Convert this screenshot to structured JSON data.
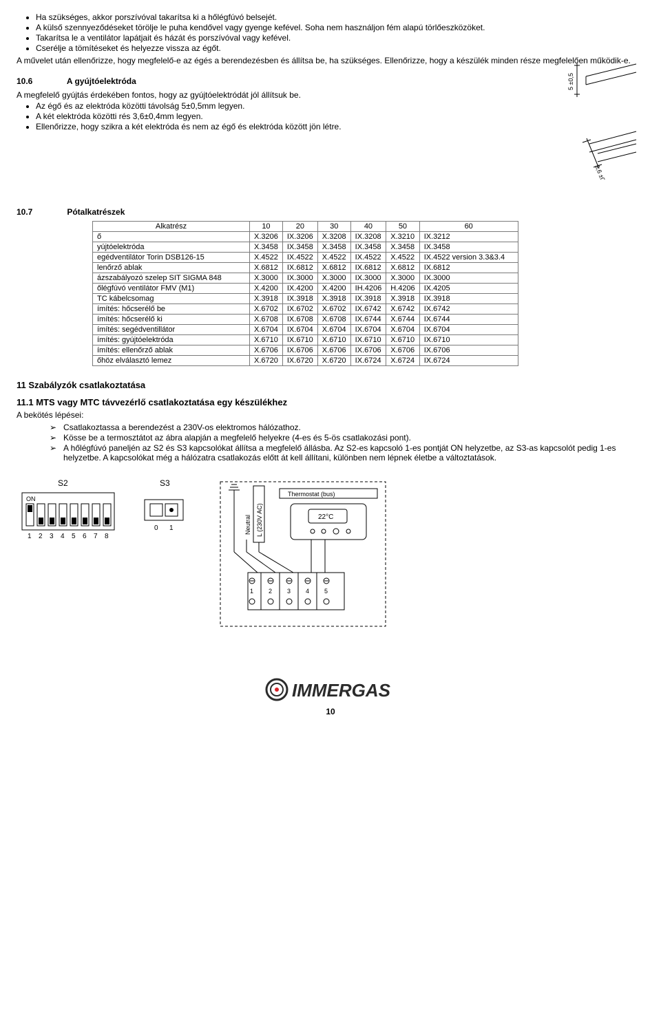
{
  "bullets_top": [
    "Ha szükséges, akkor porszívóval takarítsa ki a hőlégfúvó belsejét.",
    "A külső szennyeződéseket törölje le puha kendővel vagy gyenge kefével. Soha nem használjon fém alapú törlőeszközöket.",
    "Takarítsa le a ventilátor lapátjait és házát és porszívóval vagy kefével.",
    "Cserélje a tömítéseket és helyezze vissza az égőt."
  ],
  "para_after_bullets": "A művelet után ellenőrizze, hogy megfelelő-e az égés a berendezésben és állítsa be, ha szükséges. Ellenőrizze, hogy a készülék minden része megfelelően működik-e.",
  "sec_10_6_num": "10.6",
  "sec_10_6_title": "A gyújtóelektróda",
  "para_10_6": "A megfelelő gyújtás érdekében fontos, hogy az gyújtóelektródát jól állítsuk be.",
  "bullets_10_6": [
    "Az égő és az elektróda közötti távolság 5±0,5mm legyen.",
    "A két elektróda közötti rés 3,6±0,4mm legyen.",
    "Ellenőrizze, hogy szikra a két elektróda és nem az égő és elektróda között jön létre."
  ],
  "elec_dim_a": "5 ±0,5",
  "elec_dim_b": "3,6 ±0,4",
  "sec_10_7_num": "10.7",
  "sec_10_7_title": "Pótalkatrészek",
  "parts_header_first": "Alkatrész",
  "parts_cols": [
    "10",
    "20",
    "30",
    "40",
    "50",
    "60"
  ],
  "parts_rows": [
    {
      "name": "ő",
      "c": [
        "X.3206",
        "IX.3206",
        "X.3208",
        "IX.3208",
        "X.3210",
        "IX.3212"
      ]
    },
    {
      "name": "yújtóelektróda",
      "c": [
        "X.3458",
        "IX.3458",
        "X.3458",
        "IX.3458",
        "X.3458",
        "IX.3458"
      ]
    },
    {
      "name": "egédventilátor Torin DSB126-15",
      "c": [
        "X.4522",
        "IX.4522",
        "X.4522",
        "IX.4522",
        "X.4522",
        "IX.4522  version 3.3&3.4"
      ]
    },
    {
      "name": "lenőrző ablak",
      "c": [
        "X.6812",
        "IX.6812",
        "X.6812",
        "IX.6812",
        "X.6812",
        "IX.6812"
      ]
    },
    {
      "name": "ázszabályozó szelep SIT SIGMA 848",
      "c": [
        "X.3000",
        "IX.3000",
        "X.3000",
        "IX.3000",
        "X.3000",
        "IX.3000"
      ]
    },
    {
      "name": "őlégfúvó ventilátor FMV (M1)",
      "c": [
        "X.4200",
        "IX.4200",
        "X.4200",
        "IH.4206",
        "H.4206",
        "IX.4205"
      ]
    },
    {
      "name": "TC kábelcsomag",
      "c": [
        "X.3918",
        "IX.3918",
        "X.3918",
        "IX.3918",
        "X.3918",
        "IX.3918"
      ]
    },
    {
      "name": "ímítés: hőcserélő be",
      "c": [
        "X.6702",
        "IX.6702",
        "X.6702",
        "IX.6742",
        "X.6742",
        "IX.6742"
      ]
    },
    {
      "name": "ímítés: hőcserélő ki",
      "c": [
        "X.6708",
        "IX.6708",
        "X.6708",
        "IX.6744",
        "X.6744",
        "IX.6744"
      ]
    },
    {
      "name": "ímítés: segédventillátor",
      "c": [
        "X.6704",
        "IX.6704",
        "X.6704",
        "IX.6704",
        "X.6704",
        "IX.6704"
      ]
    },
    {
      "name": "ímítés: gyújtóelektróda",
      "c": [
        "X.6710",
        "IX.6710",
        "X.6710",
        "IX.6710",
        "X.6710",
        "IX.6710"
      ]
    },
    {
      "name": "ímítés: ellenőrző ablak",
      "c": [
        "X.6706",
        "IX.6706",
        "X.6706",
        "IX.6706",
        "X.6706",
        "IX.6706"
      ]
    },
    {
      "name": "őhöz elválasztó lemez",
      "c": [
        "X.6720",
        "IX.6720",
        "X.6720",
        "IX.6724",
        "X.6724",
        "IX.6724"
      ]
    }
  ],
  "h11": "11 Szabályzók csatlakoztatása",
  "h11_1": "11.1 MTS vagy MTC távvezérlő csatlakoztatása egy készülékhez",
  "steps_lead": "A bekötés lépései:",
  "steps": [
    "Csatlakoztassa a berendezést a 230V-os elektromos hálózathoz.",
    "Kösse be a termosztátot az ábra alapján a megfelelő helyekre (4-es és 5-ös csatlakozási pont).",
    "A hőlégfúvó paneljén az S2 és S3 kapcsolókat állítsa a megfelelő állásba. Az S2-es kapcsoló 1-es pontját ON helyzetbe, az S3-as kapcsolót pedig 1-es helyzetbe. A kapcsolókat még a hálózatra csatlakozás előtt át kell állítani, különben nem lépnek életbe a változtatások."
  ],
  "wiring_labels": {
    "s2": "S2",
    "on": "ON",
    "s2_nums": [
      "1",
      "2",
      "3",
      "4",
      "5",
      "6",
      "7",
      "8"
    ],
    "s3": "S3",
    "s3_nums": [
      "0",
      "1"
    ],
    "neutral": "Neutral",
    "l230": "L (230V AC)",
    "thermostat": "Thermostat (bus)",
    "temp": "22°C",
    "term_nums": [
      "1",
      "2",
      "3",
      "4",
      "5"
    ]
  },
  "logo_text": "IMMERGAS",
  "page_number": "10",
  "colors": {
    "text": "#000000",
    "border": "#7a7a7a",
    "bg": "#ffffff",
    "logo_red": "#d8232a",
    "logo_dark": "#2b2b2b"
  }
}
